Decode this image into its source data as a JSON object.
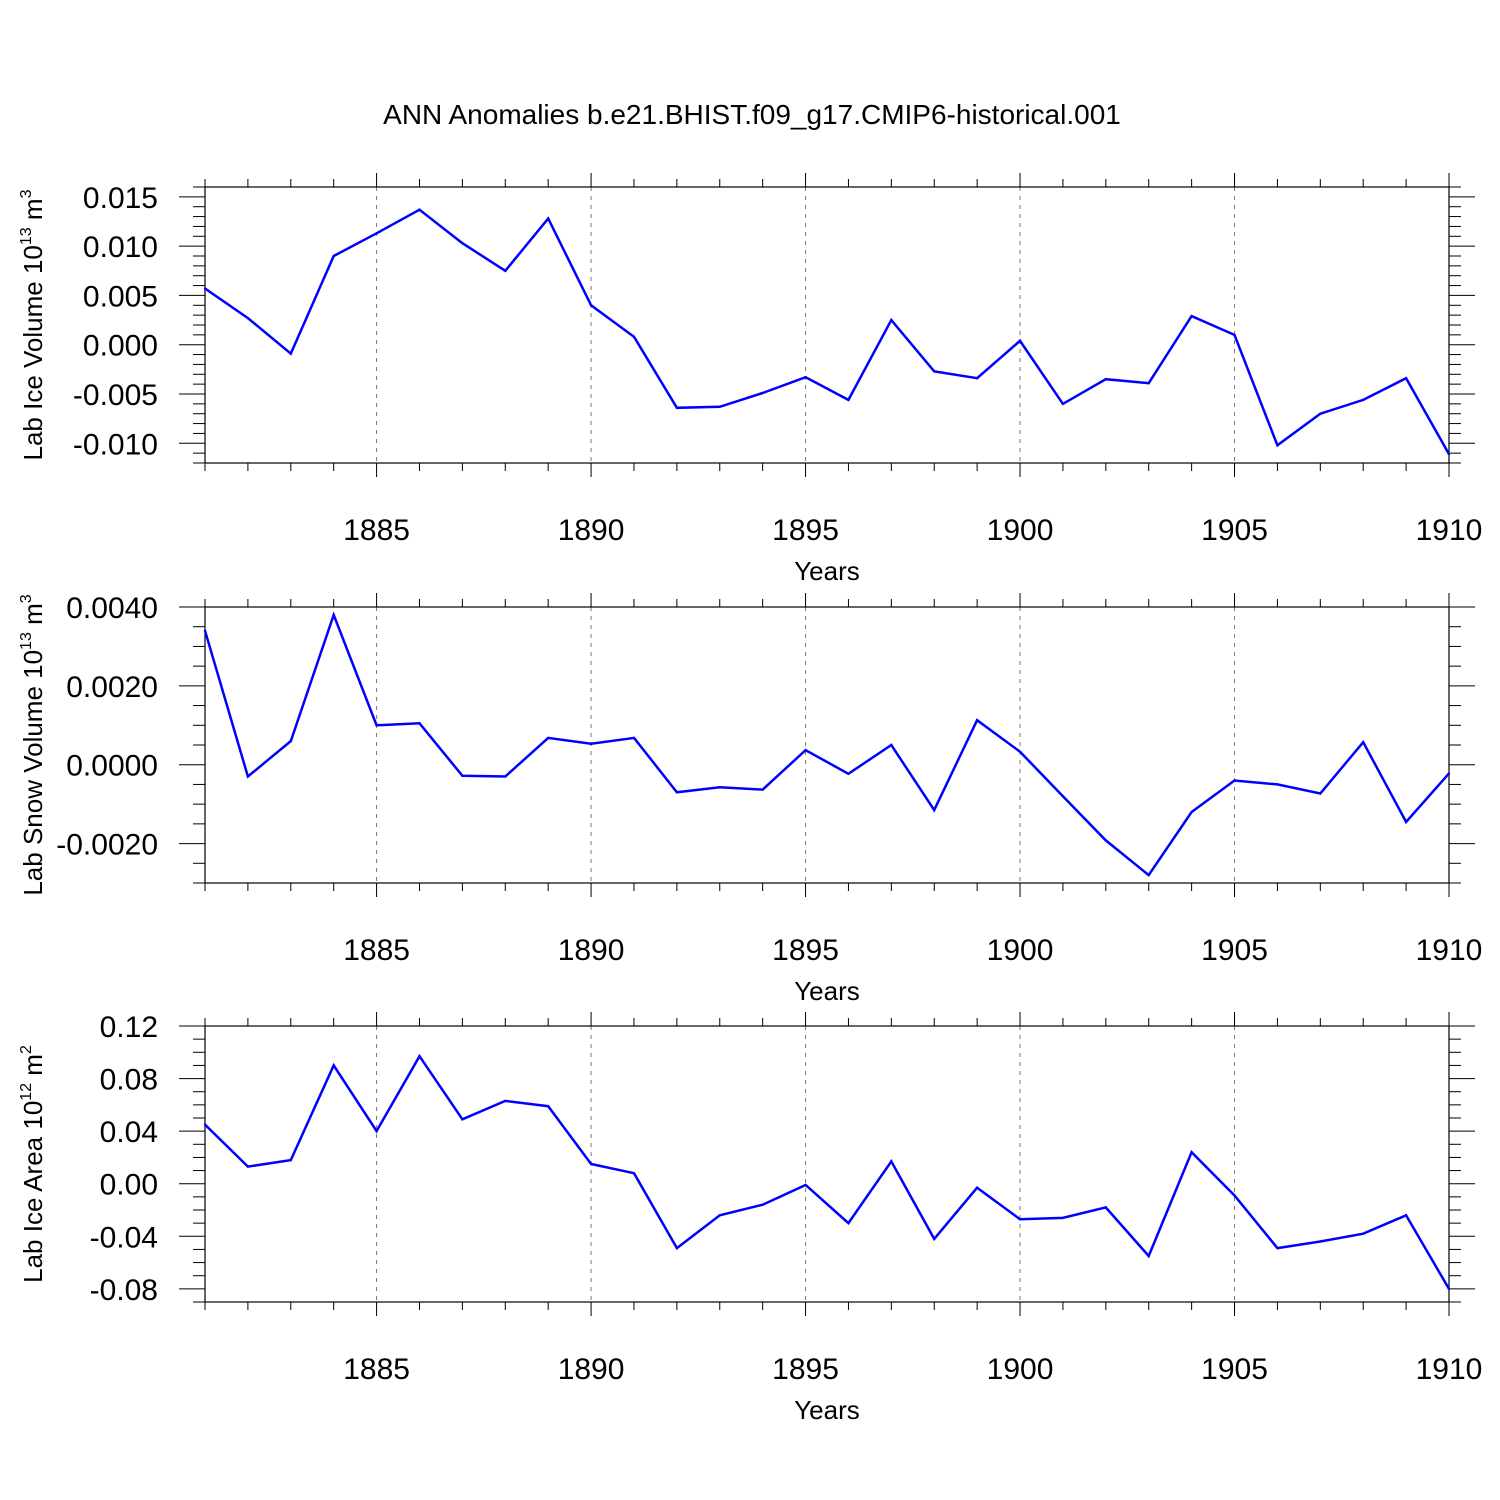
{
  "title": "ANN Anomalies b.e21.BHIST.f09_g17.CMIP6-historical.001",
  "line_color": "#0000ff",
  "chart_data": [
    {
      "type": "line",
      "ylabel_main": "Lab Ice Volume 10",
      "ylabel_exp": "13",
      "ylabel_unit": "m",
      "ylabel_unit_exp": "3",
      "xlabel": "Years",
      "xlim": [
        1881,
        1910
      ],
      "ylim": [
        -0.012,
        0.016
      ],
      "yticks": [
        0.015,
        0.01,
        0.005,
        0.0,
        -0.005,
        -0.01
      ],
      "ytick_labels": [
        "0.015",
        "0.010",
        "0.005",
        "0.000",
        "-0.005",
        "-0.010"
      ],
      "yminor_step": 0.001,
      "xticks": [
        1885,
        1890,
        1895,
        1900,
        1905,
        1910
      ],
      "xtick_labels": [
        "1885",
        "1890",
        "1895",
        "1900",
        "1905",
        "1910"
      ],
      "x": [
        1881,
        1882,
        1883,
        1884,
        1885,
        1886,
        1887,
        1888,
        1889,
        1890,
        1891,
        1892,
        1893,
        1894,
        1895,
        1896,
        1897,
        1898,
        1899,
        1900,
        1901,
        1902,
        1903,
        1904,
        1905,
        1906,
        1907,
        1908,
        1909,
        1910
      ],
      "values": [
        0.0057,
        0.0027,
        -0.0009,
        0.009,
        0.0113,
        0.0137,
        0.0103,
        0.0075,
        0.0128,
        0.004,
        0.0008,
        -0.0064,
        -0.0063,
        -0.0049,
        -0.0033,
        -0.0056,
        0.0025,
        -0.0027,
        -0.0034,
        0.0004,
        -0.006,
        -0.0035,
        -0.0039,
        0.0029,
        0.001,
        -0.0102,
        -0.007,
        -0.0056,
        -0.0034,
        -0.0111
      ]
    },
    {
      "type": "line",
      "ylabel_main": "Lab Snow Volume 10",
      "ylabel_exp": "13",
      "ylabel_unit": "m",
      "ylabel_unit_exp": "3",
      "xlabel": "Years",
      "xlim": [
        1881,
        1910
      ],
      "ylim": [
        -0.003,
        0.004
      ],
      "yticks": [
        0.004,
        0.002,
        0.0,
        -0.002
      ],
      "ytick_labels": [
        "0.0040",
        "0.0020",
        "0.0000",
        "-0.0020"
      ],
      "yminor_step": 0.0005,
      "xticks": [
        1885,
        1890,
        1895,
        1900,
        1905,
        1910
      ],
      "xtick_labels": [
        "1885",
        "1890",
        "1895",
        "1900",
        "1905",
        "1910"
      ],
      "x": [
        1881,
        1882,
        1883,
        1884,
        1885,
        1886,
        1887,
        1888,
        1889,
        1890,
        1891,
        1892,
        1893,
        1894,
        1895,
        1896,
        1897,
        1898,
        1899,
        1900,
        1901,
        1902,
        1903,
        1904,
        1905,
        1906,
        1907,
        1908,
        1909,
        1910
      ],
      "values": [
        0.0034,
        -0.0003,
        0.0006,
        0.0038,
        0.001,
        0.00105,
        -0.00028,
        -0.0003,
        0.00068,
        0.00053,
        0.00068,
        -0.0007,
        -0.00057,
        -0.00063,
        0.00037,
        -0.00023,
        0.0005,
        -0.00115,
        0.00113,
        0.00033,
        -0.0008,
        -0.00192,
        -0.0028,
        -0.0012,
        -0.0004,
        -0.0005,
        -0.00073,
        0.00057,
        -0.00145,
        -0.00022
      ]
    },
    {
      "type": "line",
      "ylabel_main": "Lab Ice Area 10",
      "ylabel_exp": "12",
      "ylabel_unit": "m",
      "ylabel_unit_exp": "2",
      "xlabel": "Years",
      "xlim": [
        1881,
        1910
      ],
      "ylim": [
        -0.09,
        0.12
      ],
      "yticks": [
        0.12,
        0.08,
        0.04,
        0.0,
        -0.04,
        -0.08
      ],
      "ytick_labels": [
        "0.12",
        "0.08",
        "0.04",
        "0.00",
        "-0.04",
        "-0.08"
      ],
      "yminor_step": 0.01,
      "xticks": [
        1885,
        1890,
        1895,
        1900,
        1905,
        1910
      ],
      "xtick_labels": [
        "1885",
        "1890",
        "1895",
        "1900",
        "1905",
        "1910"
      ],
      "x": [
        1881,
        1882,
        1883,
        1884,
        1885,
        1886,
        1887,
        1888,
        1889,
        1890,
        1891,
        1892,
        1893,
        1894,
        1895,
        1896,
        1897,
        1898,
        1899,
        1900,
        1901,
        1902,
        1903,
        1904,
        1905,
        1906,
        1907,
        1908,
        1909,
        1910
      ],
      "values": [
        0.045,
        0.013,
        0.018,
        0.09,
        0.04,
        0.097,
        0.049,
        0.063,
        0.059,
        0.015,
        0.008,
        -0.049,
        -0.024,
        -0.016,
        -0.001,
        -0.03,
        0.017,
        -0.042,
        -0.003,
        -0.027,
        -0.026,
        -0.018,
        -0.055,
        0.024,
        -0.009,
        -0.049,
        -0.044,
        -0.038,
        -0.024,
        -0.08
      ]
    }
  ]
}
